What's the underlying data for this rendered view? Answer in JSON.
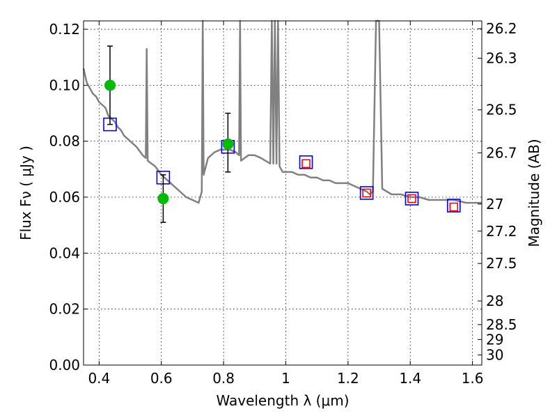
{
  "chart_data": {
    "type": "scatter",
    "xlabel": "Wavelength  λ (μm)",
    "ylabel": "Flux  Fν  ( μJy )",
    "y2label": "Magnitude (AB)",
    "xlim": [
      0.35,
      1.63
    ],
    "ylim": [
      0.0,
      0.123
    ],
    "grid": true,
    "xticks": [
      {
        "value": 0.4,
        "label": "0.4"
      },
      {
        "value": 0.6,
        "label": "0.6"
      },
      {
        "value": 0.8,
        "label": "0.8"
      },
      {
        "value": 1.0,
        "label": "1"
      },
      {
        "value": 1.2,
        "label": "1.2"
      },
      {
        "value": 1.4,
        "label": "1.4"
      },
      {
        "value": 1.6,
        "label": "1.6"
      }
    ],
    "yticks": [
      {
        "value": 0.0,
        "label": "0.00"
      },
      {
        "value": 0.02,
        "label": "0.02"
      },
      {
        "value": 0.04,
        "label": "0.04"
      },
      {
        "value": 0.06,
        "label": "0.06"
      },
      {
        "value": 0.08,
        "label": "0.08"
      },
      {
        "value": 0.1,
        "label": "0.10"
      },
      {
        "value": 0.12,
        "label": "0.12"
      }
    ],
    "magnitude_ticks": [
      "26.2",
      "26.3",
      "26.5",
      "26.7",
      "27",
      "27.2",
      "27.5",
      "28",
      "28.5",
      "29",
      "30"
    ],
    "series": [
      {
        "name": "Model SED",
        "kind": "line",
        "color": "#808080",
        "points": [
          [
            0.35,
            0.106
          ],
          [
            0.36,
            0.101
          ],
          [
            0.37,
            0.099
          ],
          [
            0.38,
            0.097
          ],
          [
            0.39,
            0.096
          ],
          [
            0.4,
            0.094
          ],
          [
            0.41,
            0.093
          ],
          [
            0.42,
            0.092
          ],
          [
            0.43,
            0.089
          ],
          [
            0.44,
            0.088
          ],
          [
            0.45,
            0.087
          ],
          [
            0.46,
            0.085
          ],
          [
            0.47,
            0.084
          ],
          [
            0.48,
            0.082
          ],
          [
            0.49,
            0.081
          ],
          [
            0.5,
            0.08
          ],
          [
            0.52,
            0.078
          ],
          [
            0.54,
            0.075
          ],
          [
            0.55,
            0.074
          ],
          [
            0.553,
            0.113
          ],
          [
            0.556,
            0.073
          ],
          [
            0.58,
            0.071
          ],
          [
            0.6,
            0.068
          ],
          [
            0.62,
            0.066
          ],
          [
            0.64,
            0.064
          ],
          [
            0.66,
            0.062
          ],
          [
            0.68,
            0.06
          ],
          [
            0.7,
            0.059
          ],
          [
            0.72,
            0.058
          ],
          [
            0.73,
            0.062
          ],
          [
            0.733,
            0.123
          ],
          [
            0.736,
            0.068
          ],
          [
            0.75,
            0.074
          ],
          [
            0.77,
            0.076
          ],
          [
            0.79,
            0.077
          ],
          [
            0.8,
            0.077
          ],
          [
            0.82,
            0.077
          ],
          [
            0.84,
            0.076
          ],
          [
            0.85,
            0.075
          ],
          [
            0.853,
            0.123
          ],
          [
            0.856,
            0.073
          ],
          [
            0.88,
            0.075
          ],
          [
            0.9,
            0.075
          ],
          [
            0.92,
            0.074
          ],
          [
            0.95,
            0.072
          ],
          [
            0.955,
            0.123
          ],
          [
            0.96,
            0.072
          ],
          [
            0.965,
            0.123
          ],
          [
            0.97,
            0.072
          ],
          [
            0.975,
            0.123
          ],
          [
            0.98,
            0.071
          ],
          [
            0.99,
            0.069
          ],
          [
            1.0,
            0.069
          ],
          [
            1.02,
            0.069
          ],
          [
            1.04,
            0.068
          ],
          [
            1.06,
            0.068
          ],
          [
            1.08,
            0.067
          ],
          [
            1.1,
            0.067
          ],
          [
            1.12,
            0.066
          ],
          [
            1.14,
            0.066
          ],
          [
            1.16,
            0.065
          ],
          [
            1.18,
            0.065
          ],
          [
            1.2,
            0.065
          ],
          [
            1.22,
            0.064
          ],
          [
            1.24,
            0.063
          ],
          [
            1.26,
            0.062
          ],
          [
            1.27,
            0.061
          ],
          [
            1.28,
            0.062
          ],
          [
            1.29,
            0.123
          ],
          [
            1.3,
            0.123
          ],
          [
            1.31,
            0.063
          ],
          [
            1.34,
            0.061
          ],
          [
            1.37,
            0.061
          ],
          [
            1.4,
            0.06
          ],
          [
            1.43,
            0.06
          ],
          [
            1.46,
            0.059
          ],
          [
            1.5,
            0.059
          ],
          [
            1.54,
            0.059
          ],
          [
            1.58,
            0.058
          ],
          [
            1.61,
            0.058
          ],
          [
            1.63,
            0.058
          ]
        ]
      },
      {
        "name": "Model photometry",
        "kind": "open-square",
        "color": "#0000ff",
        "points": [
          [
            0.435,
            0.086
          ],
          [
            0.606,
            0.067
          ],
          [
            0.814,
            0.078
          ],
          [
            1.065,
            0.0725
          ],
          [
            1.26,
            0.0615
          ],
          [
            1.405,
            0.0595
          ],
          [
            1.54,
            0.057
          ]
        ]
      },
      {
        "name": "Upper limits",
        "kind": "open-square",
        "color": "#ff0000",
        "points": [
          [
            1.065,
            0.072
          ],
          [
            1.26,
            0.0615
          ],
          [
            1.405,
            0.0595
          ],
          [
            1.54,
            0.0565
          ]
        ]
      },
      {
        "name": "Observed",
        "kind": "dot-errorbar",
        "color": "#00bb00",
        "points": [
          {
            "x": 0.435,
            "y": 0.1,
            "ylo": 0.086,
            "yhi": 0.114
          },
          {
            "x": 0.606,
            "y": 0.0595,
            "ylo": 0.051,
            "yhi": 0.068
          },
          {
            "x": 0.814,
            "y": 0.079,
            "ylo": 0.069,
            "yhi": 0.09
          }
        ]
      }
    ]
  }
}
